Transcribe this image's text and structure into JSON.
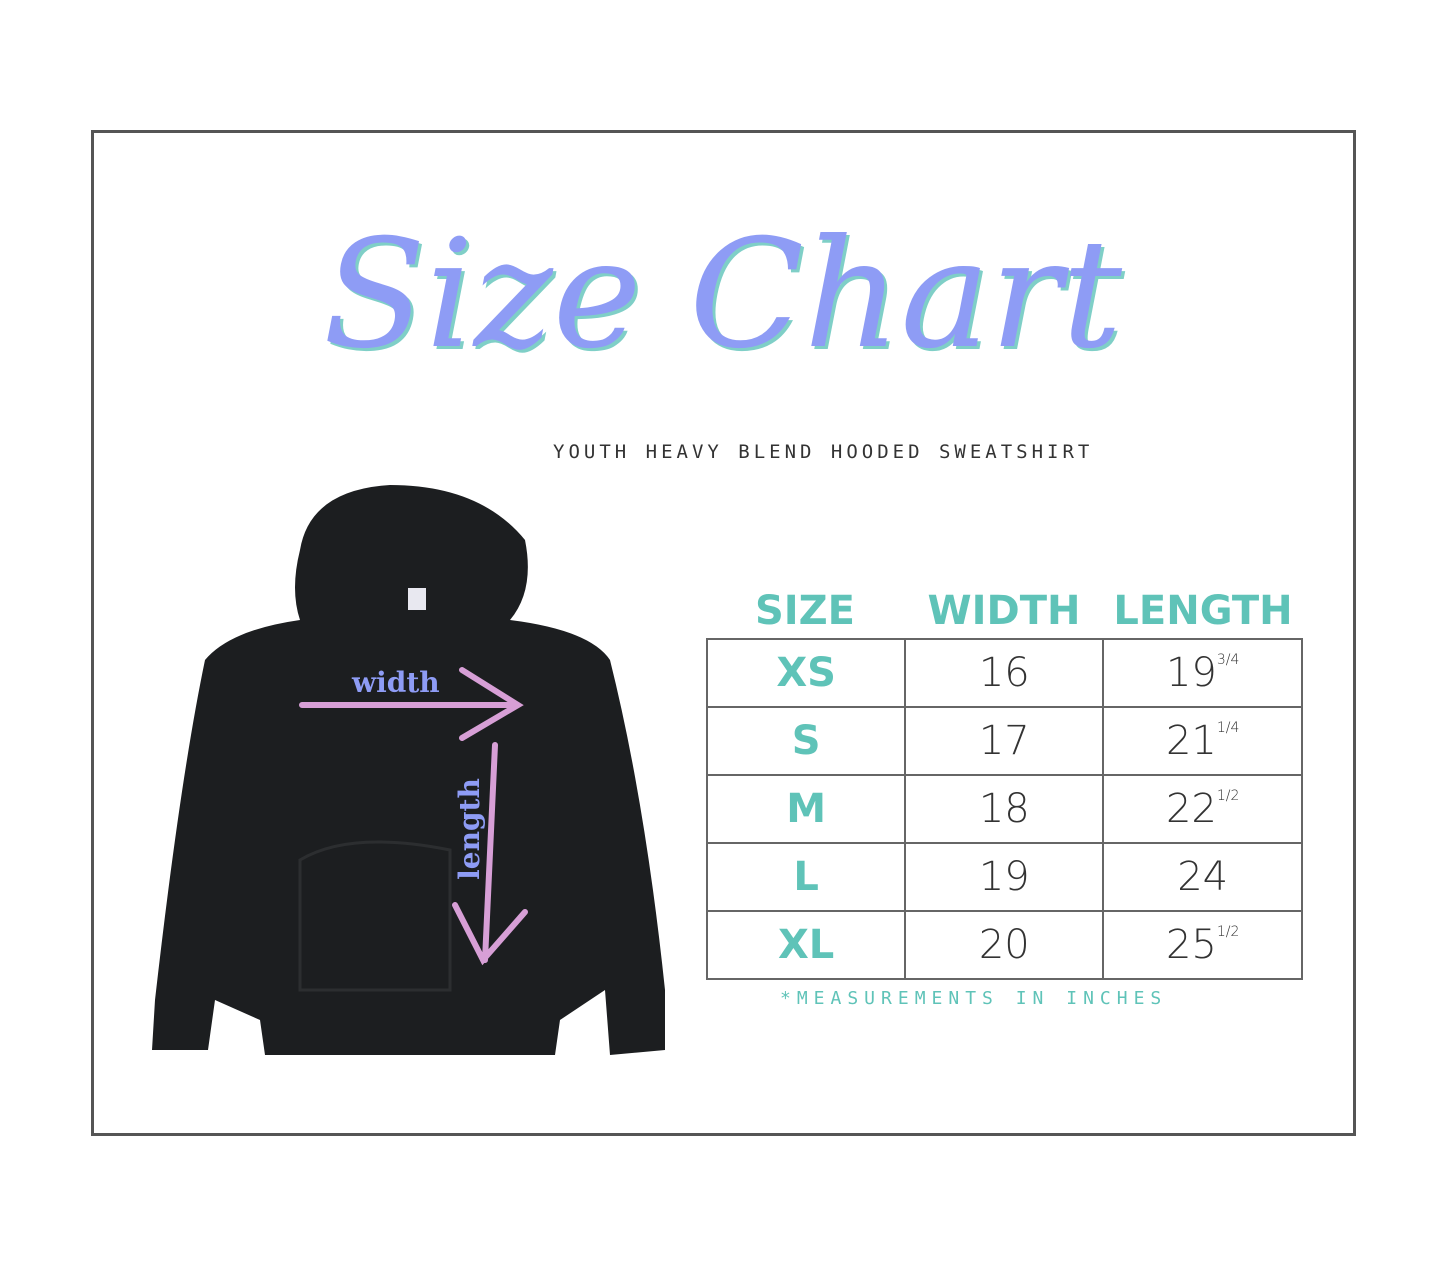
{
  "title": "Size Chart",
  "subtitle": "Youth Heavy Blend Hooded Sweatshirt",
  "diagram": {
    "width_label": "width",
    "length_label": "length",
    "arrow_color": "#d79fd6",
    "label_color": "#8e9cf5",
    "garment_color": "#1c1e20"
  },
  "table": {
    "headers": [
      "SIZE",
      "WIDTH",
      "LENGTH"
    ],
    "rows": [
      {
        "size": "XS",
        "width": "16",
        "length": "19",
        "length_frac": "3/4"
      },
      {
        "size": "S",
        "width": "17",
        "length": "21",
        "length_frac": "1/4"
      },
      {
        "size": "M",
        "width": "18",
        "length": "22",
        "length_frac": "1/2"
      },
      {
        "size": "L",
        "width": "19",
        "length": "24",
        "length_frac": ""
      },
      {
        "size": "XL",
        "width": "20",
        "length": "25",
        "length_frac": "1/2"
      }
    ]
  },
  "note": "*Measurements in inches",
  "colors": {
    "title": "#8e9cf5",
    "accent": "#5fc3b8",
    "border": "#555555"
  }
}
